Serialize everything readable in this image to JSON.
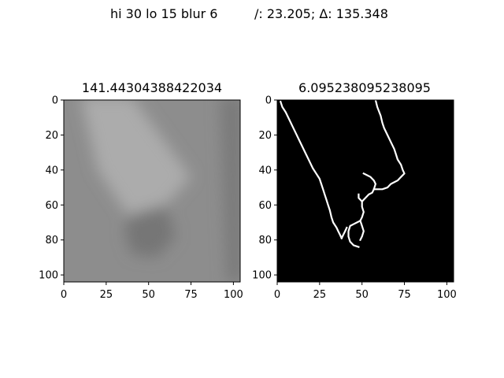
{
  "figure": {
    "suptitle_left": "hi 30 lo 15 blur 6",
    "suptitle_right": "/: 23.205; Δ: 135.348"
  },
  "chart_data": [
    {
      "type": "heatmap",
      "title": "141.44304388422034",
      "colormap": "gray",
      "x_range": [
        0,
        104
      ],
      "y_range": [
        104,
        0
      ],
      "x_ticks": [
        0,
        25,
        50,
        75,
        100
      ],
      "y_ticks": [
        0,
        20,
        40,
        60,
        80,
        100
      ],
      "base_value": 141.4,
      "features": [
        {
          "name": "bright-band-upper-left",
          "value": 172,
          "points": [
            [
              10,
              -2
            ],
            [
              40,
              -2
            ],
            [
              75,
              44
            ],
            [
              60,
              60
            ],
            [
              38,
              66
            ],
            [
              20,
              40
            ]
          ]
        },
        {
          "name": "darker-lower-center",
          "value": 118,
          "points": [
            [
              38,
              66
            ],
            [
              60,
              60
            ],
            [
              66,
              78
            ],
            [
              55,
              90
            ],
            [
              40,
              88
            ],
            [
              36,
              76
            ]
          ]
        },
        {
          "name": "dark-right-edge",
          "value": 122,
          "points": [
            [
              92,
              -2
            ],
            [
              106,
              -2
            ],
            [
              106,
              104
            ],
            [
              96,
              104
            ]
          ]
        }
      ]
    },
    {
      "type": "heatmap",
      "title": "6.095238095238095",
      "colormap": "gray",
      "x_range": [
        0,
        104
      ],
      "y_range": [
        104,
        0
      ],
      "x_ticks": [
        0,
        25,
        50,
        75,
        100
      ],
      "y_ticks": [
        0,
        20,
        40,
        60,
        80,
        100
      ],
      "background_value": 0,
      "edge_value": 255,
      "edges": [
        [
          [
            2,
            1
          ],
          [
            3,
            4
          ],
          [
            5,
            7
          ],
          [
            7,
            11
          ],
          [
            9,
            15
          ],
          [
            11,
            19
          ],
          [
            13,
            23
          ],
          [
            15,
            27
          ],
          [
            17,
            31
          ],
          [
            19,
            35
          ],
          [
            21,
            39
          ],
          [
            23,
            42
          ],
          [
            25,
            45
          ],
          [
            26,
            48
          ],
          [
            27,
            51
          ],
          [
            28,
            54
          ],
          [
            29,
            57
          ],
          [
            30,
            60
          ],
          [
            31,
            63
          ],
          [
            32,
            67
          ],
          [
            33,
            70
          ],
          [
            35,
            73
          ],
          [
            36,
            75
          ],
          [
            37,
            77
          ],
          [
            38,
            79
          ]
        ],
        [
          [
            58,
            0
          ],
          [
            59,
            4
          ],
          [
            61,
            9
          ],
          [
            62,
            13
          ],
          [
            63,
            16
          ],
          [
            65,
            20
          ],
          [
            67,
            24
          ],
          [
            69,
            28
          ],
          [
            70,
            31
          ],
          [
            71,
            34
          ],
          [
            73,
            37
          ],
          [
            74,
            40
          ],
          [
            75,
            42
          ],
          [
            73,
            44
          ],
          [
            71,
            46
          ],
          [
            69,
            47
          ],
          [
            67,
            48
          ],
          [
            65,
            50
          ],
          [
            62,
            51
          ],
          [
            59,
            51
          ],
          [
            57,
            51
          ]
        ],
        [
          [
            57,
            51
          ],
          [
            56,
            53
          ],
          [
            54,
            54
          ],
          [
            52,
            56
          ],
          [
            50,
            58
          ],
          [
            50,
            61
          ],
          [
            51,
            64
          ],
          [
            50,
            67
          ],
          [
            49,
            69
          ],
          [
            47,
            70
          ],
          [
            45,
            71
          ],
          [
            43,
            72
          ],
          [
            42,
            75
          ],
          [
            42,
            78
          ],
          [
            43,
            81
          ],
          [
            45,
            83
          ],
          [
            48,
            84
          ]
        ],
        [
          [
            57,
            51
          ],
          [
            58,
            48
          ],
          [
            57,
            46
          ],
          [
            55,
            44
          ],
          [
            53,
            43
          ],
          [
            51,
            42
          ]
        ],
        [
          [
            50,
            58
          ],
          [
            48,
            56
          ],
          [
            48,
            54
          ]
        ],
        [
          [
            49,
            69
          ],
          [
            50,
            72
          ],
          [
            51,
            75
          ],
          [
            50,
            78
          ],
          [
            49,
            80
          ]
        ],
        [
          [
            38,
            79
          ],
          [
            39,
            77
          ],
          [
            40,
            75
          ],
          [
            41,
            73
          ]
        ]
      ]
    }
  ]
}
